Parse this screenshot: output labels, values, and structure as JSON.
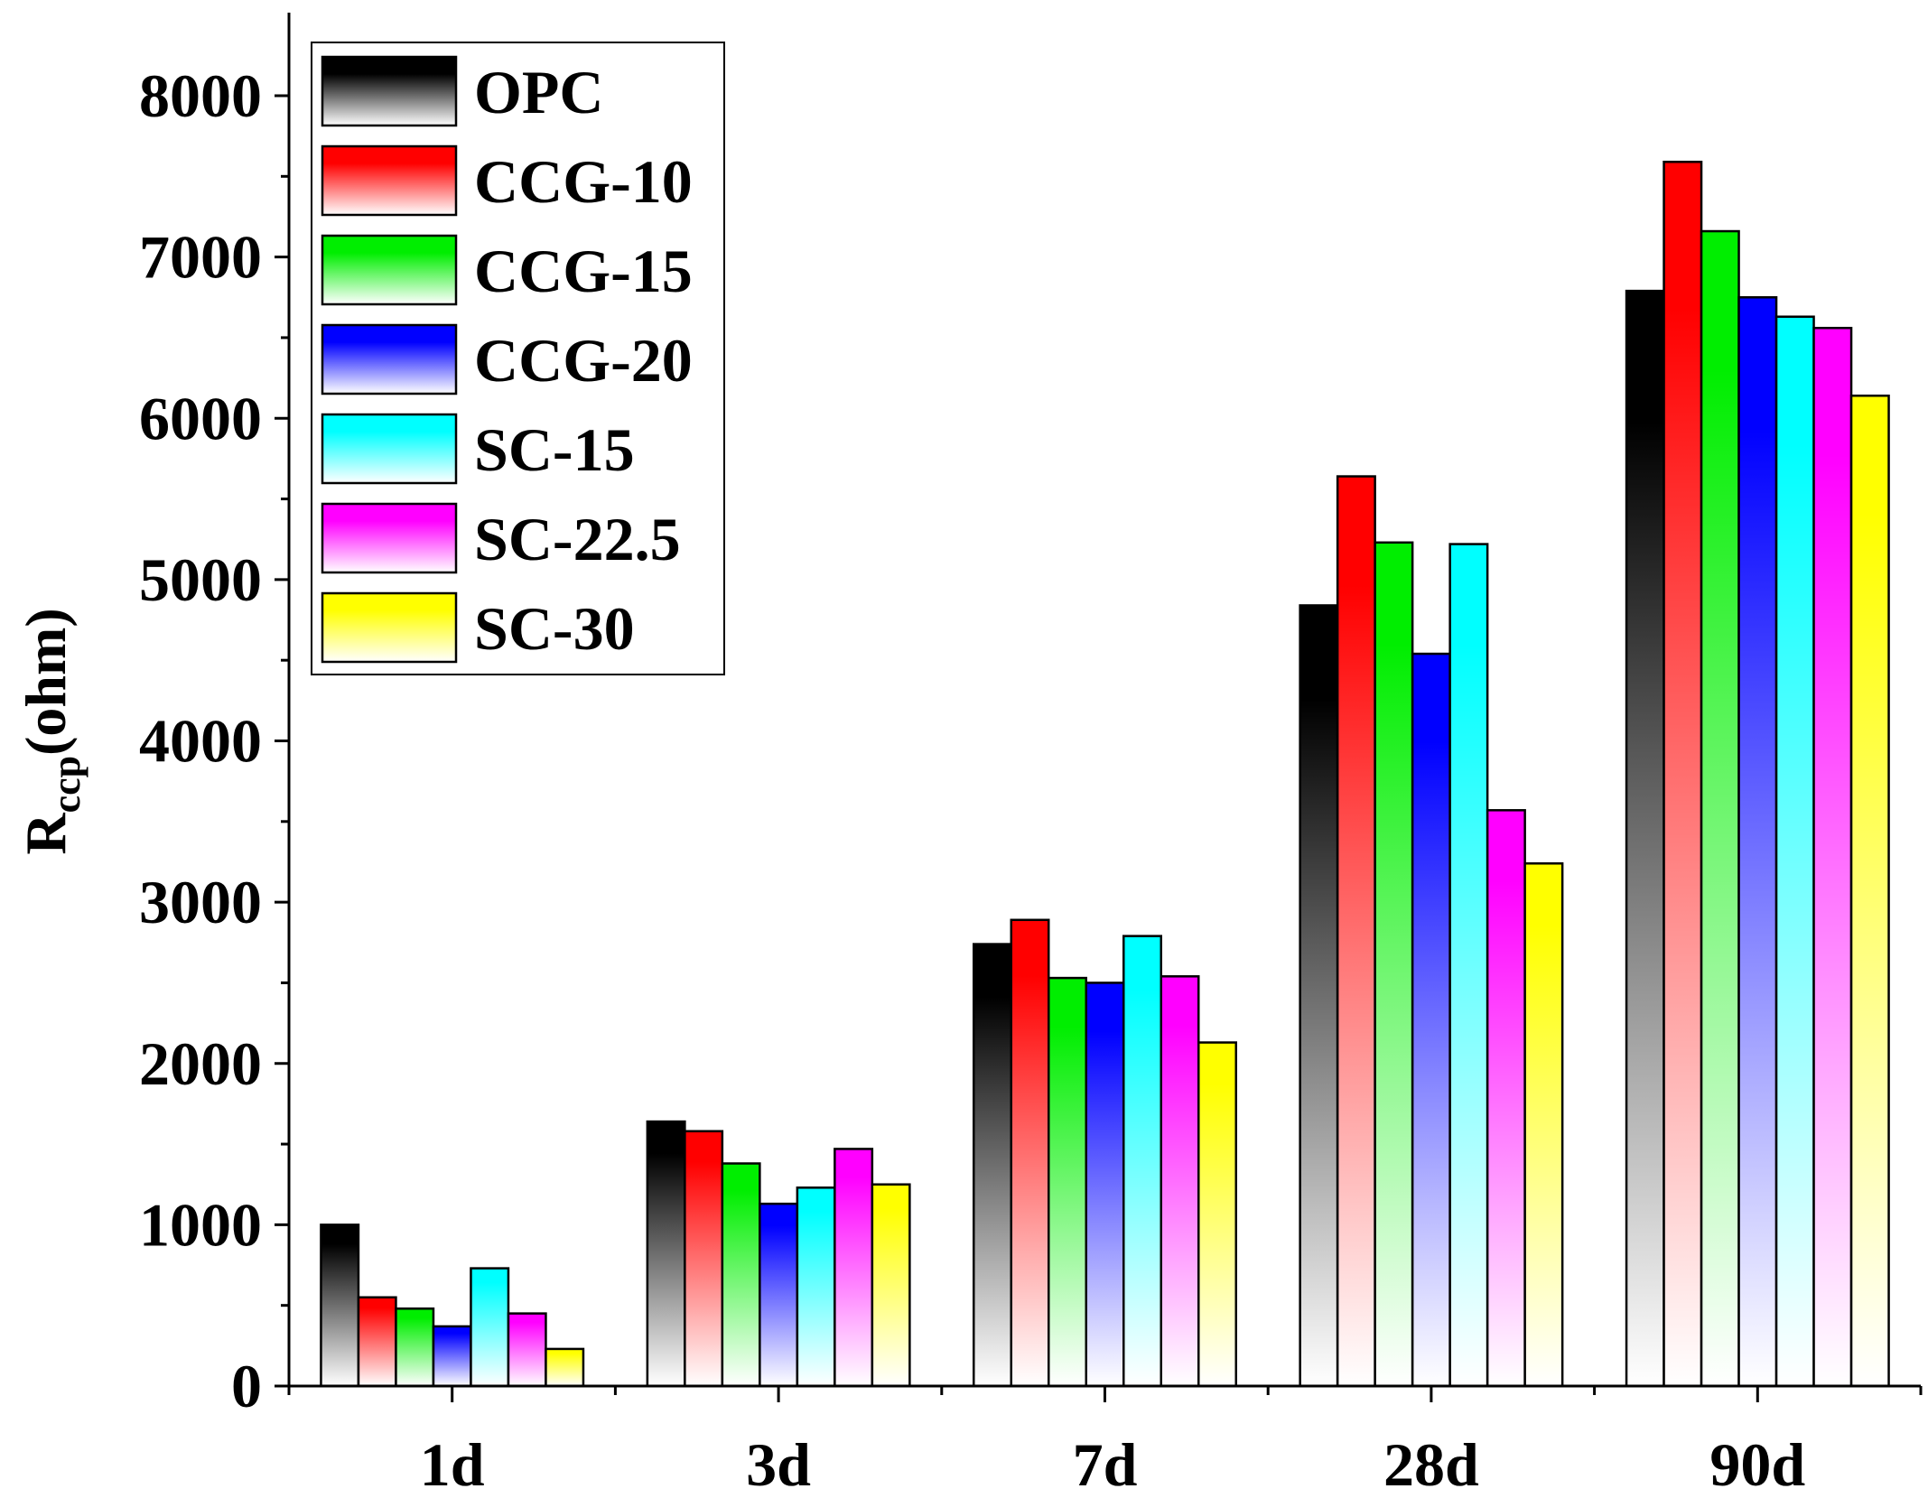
{
  "chart_data": {
    "type": "bar",
    "title": "",
    "xlabel": "",
    "ylabel": {
      "main": "R",
      "subscript": "ccp",
      "suffix": "(ohm)"
    },
    "categories": [
      "1d",
      "3d",
      "7d",
      "28d",
      "90d"
    ],
    "ylim": [
      0,
      8500
    ],
    "yticks": [
      0,
      1000,
      2000,
      3000,
      4000,
      5000,
      6000,
      7000,
      8000
    ],
    "legend_position": "top-left",
    "series": [
      {
        "name": "OPC",
        "color": "#000000",
        "values": [
          1000,
          1640,
          2740,
          4840,
          6790
        ]
      },
      {
        "name": "CCG-10",
        "color": "#ff0000",
        "values": [
          550,
          1580,
          2890,
          5640,
          7590
        ]
      },
      {
        "name": "CCG-15",
        "color": "#00ee00",
        "values": [
          480,
          1380,
          2530,
          5230,
          7160
        ]
      },
      {
        "name": "CCG-20",
        "color": "#0000ff",
        "values": [
          370,
          1130,
          2500,
          4540,
          6750
        ]
      },
      {
        "name": "SC-15",
        "color": "#00ffff",
        "values": [
          730,
          1230,
          2790,
          5220,
          6630
        ]
      },
      {
        "name": "SC-22.5",
        "color": "#ff00ff",
        "values": [
          450,
          1470,
          2540,
          3570,
          6560
        ]
      },
      {
        "name": "SC-30",
        "color": "#ffff00",
        "values": [
          230,
          1250,
          2130,
          3240,
          6140
        ]
      }
    ]
  }
}
